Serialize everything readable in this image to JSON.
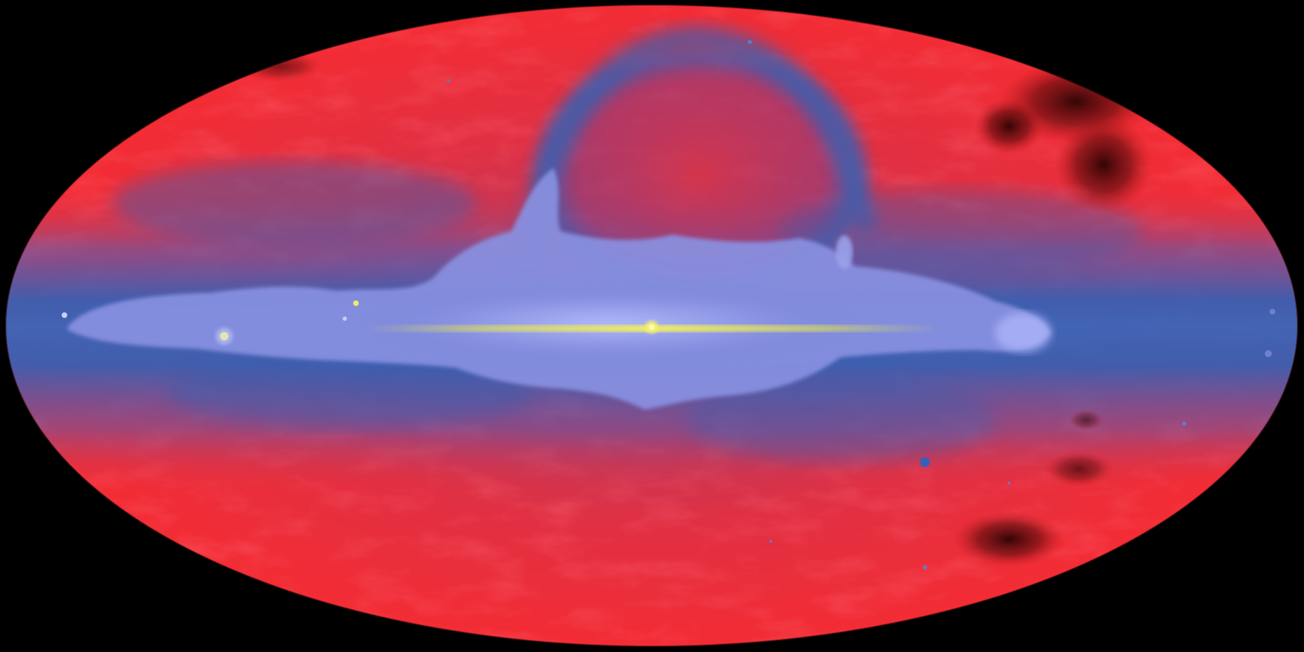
{
  "image": {
    "subject": "all-sky-map",
    "projection": "mollweide",
    "background_color": "#000000",
    "palette": {
      "high_latitude": "#ff2a30",
      "mid_latitude": "#c0305a",
      "transition_band": "#3f64b4",
      "plane_diffuse": "#8790e0",
      "plane_bright": "#b4bcff",
      "core_emission": "#e6e640",
      "dark_clouds": "#3a0606"
    }
  }
}
